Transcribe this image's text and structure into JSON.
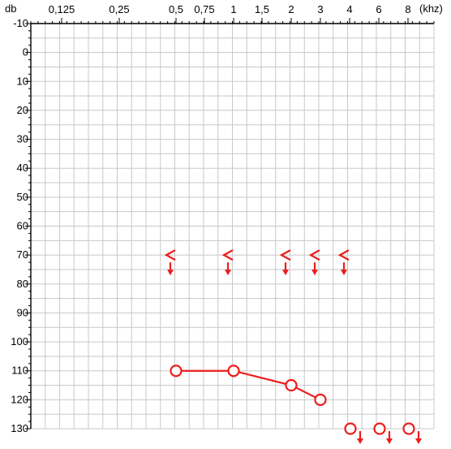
{
  "chart_data": {
    "type": "scatter",
    "title": "",
    "xlabel": "(khz)",
    "ylabel": "db",
    "x_ticks": [
      "0,125",
      "0,25",
      "0,5",
      "0,75",
      "1",
      "1,5",
      "2",
      "3",
      "4",
      "6",
      "8"
    ],
    "y_ticks": [
      "-10",
      "0",
      "10",
      "20",
      "30",
      "40",
      "50",
      "60",
      "70",
      "80",
      "90",
      "100",
      "110",
      "120",
      "130"
    ],
    "ylim": [
      -10,
      130
    ],
    "grid": true,
    "color": "#ee1c1c",
    "series": [
      {
        "marker": "circle",
        "connected": true,
        "points": [
          {
            "x": "0,5",
            "y": 110
          },
          {
            "x": "1",
            "y": 110
          },
          {
            "x": "2",
            "y": 115
          },
          {
            "x": "3",
            "y": 120
          }
        ]
      },
      {
        "marker": "circle-no-response",
        "connected": false,
        "points": [
          {
            "x": "4",
            "y": 130
          },
          {
            "x": "6",
            "y": 130
          },
          {
            "x": "8",
            "y": 130
          }
        ]
      },
      {
        "marker": "bracket-no-response",
        "connected": false,
        "points": [
          {
            "x": "0,5",
            "y": 70
          },
          {
            "x": "1",
            "y": 70
          },
          {
            "x": "2",
            "y": 70
          },
          {
            "x": "3",
            "y": 70
          },
          {
            "x": "4",
            "y": 70
          }
        ]
      }
    ]
  }
}
